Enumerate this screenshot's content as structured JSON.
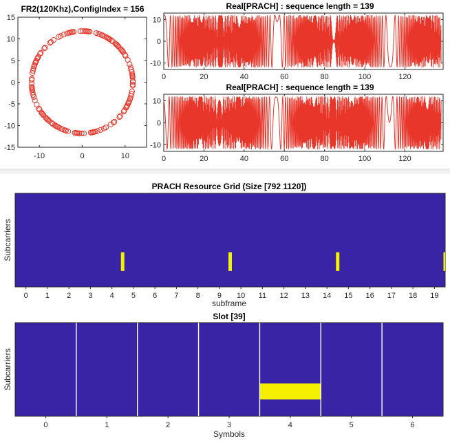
{
  "chart_data": [
    {
      "id": "scatter",
      "type": "scatter",
      "title": "FR2(120Khz),ConfigIndex = 156",
      "xlim": [
        -15,
        15
      ],
      "ylim": [
        -15,
        15
      ],
      "xticks": [
        -10,
        0,
        10
      ],
      "yticks": [
        15,
        10,
        5,
        0,
        -5,
        -10,
        -15
      ],
      "marker": "open-circle",
      "color": "#e8362a",
      "ring_radius": 11.8,
      "point_count": 139
    },
    {
      "id": "real1",
      "type": "line",
      "title": "Real[PRACH] : sequence length = 139",
      "xlim": [
        0,
        139
      ],
      "ylim": [
        -13,
        13
      ],
      "xticks": [
        0,
        20,
        40,
        60,
        80,
        100,
        120
      ],
      "yticks": [
        10,
        0,
        -10
      ],
      "color": "#e8362a",
      "sequence_length": 139
    },
    {
      "id": "real2",
      "type": "line",
      "title": "Real[PRACH] : sequence length = 139",
      "xlim": [
        0,
        139
      ],
      "ylim": [
        -13,
        13
      ],
      "xticks": [
        0,
        20,
        40,
        60,
        80,
        100,
        120
      ],
      "yticks": [
        10,
        0,
        -10
      ],
      "color": "#e8362a",
      "sequence_length": 139
    },
    {
      "id": "grid",
      "type": "heatmap",
      "title": "PRACH Resource Grid (Size [792 1120])",
      "xlabel": "subframe",
      "ylabel": "Subcarriers",
      "xticks": [
        "0",
        "1",
        "2",
        "3",
        "4",
        "5",
        "6",
        "7",
        "8",
        "9",
        "10",
        "11",
        "12",
        "13",
        "14",
        "15",
        "16",
        "17",
        "18",
        "19"
      ],
      "xlim": [
        -0.5,
        19.5
      ],
      "background_color": "#3a24a6",
      "active_color": "#f5f000",
      "active_subframes": [
        4.5,
        9.5,
        14.5,
        19.5
      ],
      "active_band_fraction": [
        0.63,
        0.83
      ]
    },
    {
      "id": "slot",
      "type": "heatmap",
      "title": "Slot [39]",
      "xlabel": "Symbols",
      "ylabel": "Subcarriers",
      "xticks": [
        "0",
        "1",
        "2",
        "3",
        "4",
        "5",
        "6"
      ],
      "xlim": [
        -0.5,
        6.5
      ],
      "background_color": "#3a24a6",
      "active_color": "#f5f000",
      "active_symbol": 4,
      "active_band_fraction": [
        0.65,
        0.82
      ]
    }
  ]
}
